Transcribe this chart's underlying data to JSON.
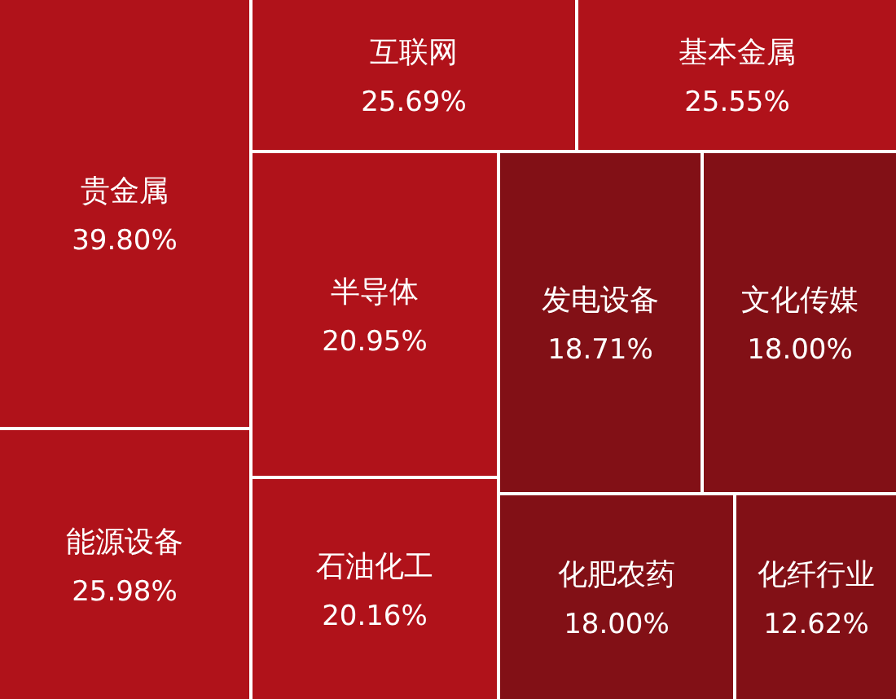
{
  "chart_data": {
    "type": "other",
    "categories": [
      "贵金属",
      "互联网",
      "基本金属",
      "半导体",
      "发电设备",
      "文化传媒",
      "能源设备",
      "石油化工",
      "化肥农药",
      "化纤行业"
    ],
    "values": [
      39.8,
      25.69,
      25.55,
      20.95,
      18.71,
      18.0,
      25.98,
      20.16,
      18.0,
      12.62
    ],
    "value_labels": [
      "39.80%",
      "25.69%",
      "25.55%",
      "20.95%",
      "18.71%",
      "18.00%",
      "25.98%",
      "20.16%",
      "18.00%",
      "12.62%"
    ],
    "colors": [
      "#b0121a",
      "#b0121a",
      "#b0121a",
      "#b0121a",
      "#821016",
      "#821016",
      "#b0121a",
      "#b0121a",
      "#821016",
      "#821016"
    ]
  }
}
